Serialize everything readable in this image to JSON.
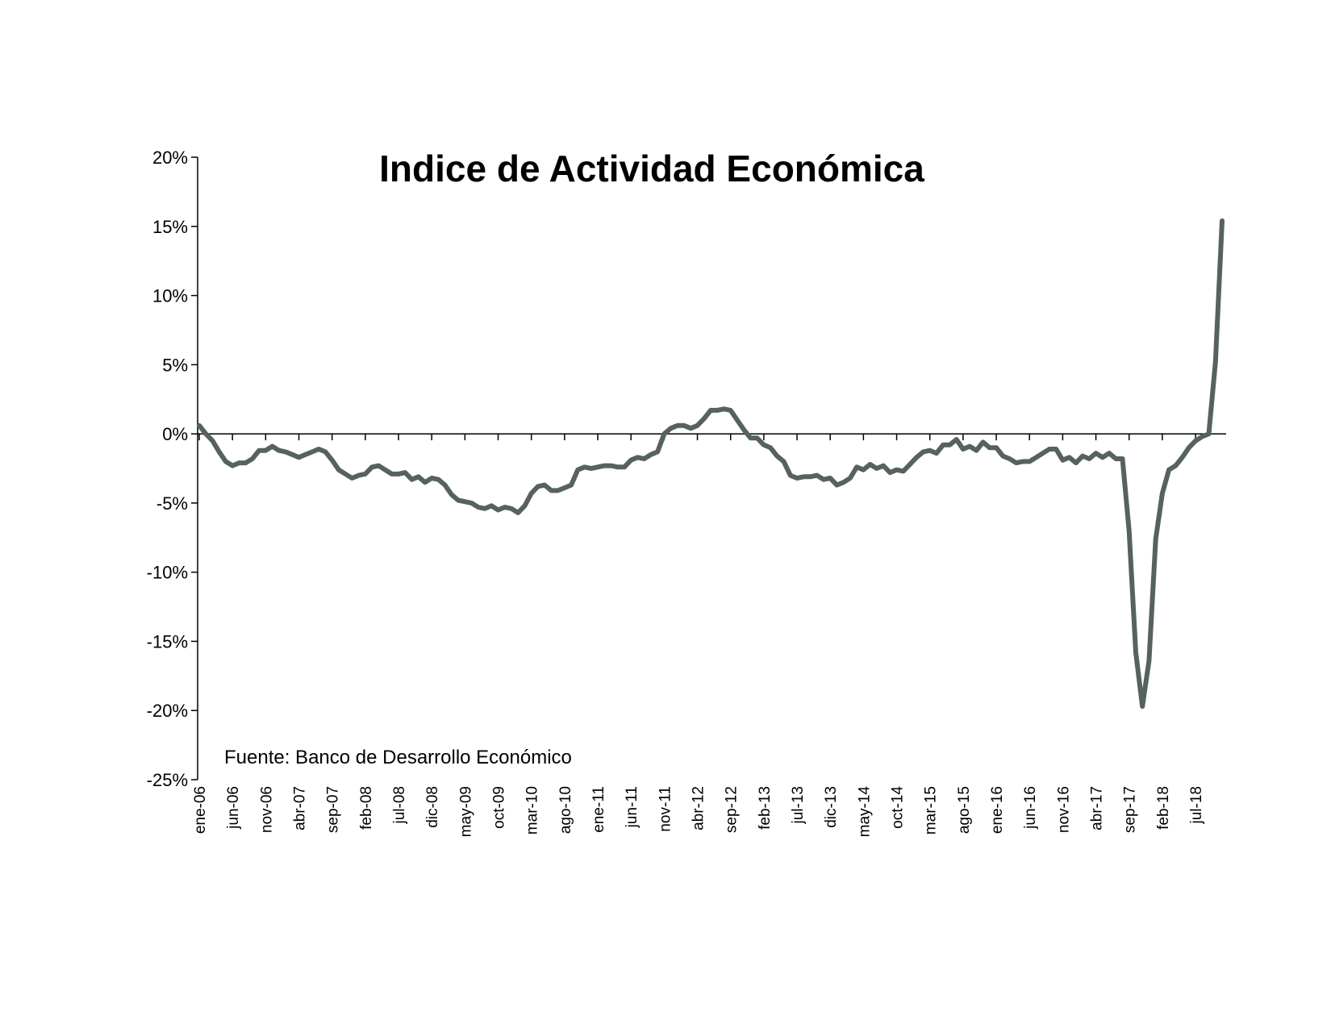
{
  "chart_data": {
    "type": "line",
    "title": "Indice de Actividad Económica",
    "note": "Fuente: Banco de Desarrollo Económico",
    "xlabel": "",
    "ylabel": "",
    "ylim": [
      -25,
      20
    ],
    "y_ticks": [
      20,
      15,
      10,
      5,
      0,
      -5,
      -10,
      -15,
      -20,
      -25
    ],
    "y_tick_labels": [
      "20%",
      "15%",
      "10%",
      "5%",
      "0%",
      "-5%",
      "-10%",
      "-15%",
      "-20%",
      "-25%"
    ],
    "x_tick_labels": [
      "ene-06",
      "jun-06",
      "nov-06",
      "abr-07",
      "sep-07",
      "feb-08",
      "jul-08",
      "dic-08",
      "may-09",
      "oct-09",
      "mar-10",
      "ago-10",
      "ene-11",
      "jun-11",
      "nov-11",
      "abr-12",
      "sep-12",
      "feb-13",
      "jul-13",
      "dic-13",
      "may-14",
      "oct-14",
      "mar-15",
      "ago-15",
      "ene-16",
      "jun-16",
      "nov-16",
      "abr-17",
      "sep-17",
      "feb-18",
      "jul-18"
    ],
    "x_tick_every_months": 5,
    "first_month": "ene-06",
    "grid": false,
    "line_color": "#56625f",
    "series": [
      {
        "values": [
          0.6,
          0.0,
          -0.5,
          -1.3,
          -2.0,
          -2.3,
          -2.1,
          -2.1,
          -1.8,
          -1.2,
          -1.2,
          -0.9,
          -1.2,
          -1.3,
          -1.5,
          -1.7,
          -1.5,
          -1.3,
          -1.1,
          -1.3,
          -1.9,
          -2.6,
          -2.9,
          -3.2,
          -3.0,
          -2.9,
          -2.4,
          -2.3,
          -2.6,
          -2.9,
          -2.9,
          -2.8,
          -3.3,
          -3.1,
          -3.5,
          -3.2,
          -3.3,
          -3.7,
          -4.4,
          -4.8,
          -4.9,
          -5.0,
          -5.3,
          -5.4,
          -5.2,
          -5.5,
          -5.3,
          -5.4,
          -5.7,
          -5.2,
          -4.3,
          -3.8,
          -3.7,
          -4.1,
          -4.1,
          -3.9,
          -3.7,
          -2.6,
          -2.4,
          -2.5,
          -2.4,
          -2.3,
          -2.3,
          -2.4,
          -2.4,
          -1.9,
          -1.7,
          -1.8,
          -1.5,
          -1.3,
          0.0,
          0.4,
          0.6,
          0.6,
          0.4,
          0.6,
          1.1,
          1.7,
          1.7,
          1.8,
          1.7,
          1.0,
          0.3,
          -0.3,
          -0.3,
          -0.8,
          -1.0,
          -1.6,
          -2.0,
          -3.0,
          -3.2,
          -3.1,
          -3.1,
          -3.0,
          -3.3,
          -3.2,
          -3.7,
          -3.5,
          -3.2,
          -2.4,
          -2.6,
          -2.2,
          -2.5,
          -2.3,
          -2.8,
          -2.6,
          -2.7,
          -2.2,
          -1.7,
          -1.3,
          -1.2,
          -1.4,
          -0.8,
          -0.8,
          -0.4,
          -1.1,
          -0.9,
          -1.2,
          -0.6,
          -1.0,
          -1.0,
          -1.6,
          -1.8,
          -2.1,
          -2.0,
          -2.0,
          -1.7,
          -1.4,
          -1.1,
          -1.1,
          -1.9,
          -1.7,
          -2.1,
          -1.6,
          -1.8,
          -1.4,
          -1.7,
          -1.4,
          -1.8,
          -1.8,
          -7.0,
          -15.8,
          -19.7,
          -16.4,
          -7.6,
          -4.3,
          -2.6,
          -2.3,
          -1.7,
          -1.0,
          -0.5,
          -0.2,
          0.0,
          5.2,
          15.4
        ]
      }
    ]
  }
}
